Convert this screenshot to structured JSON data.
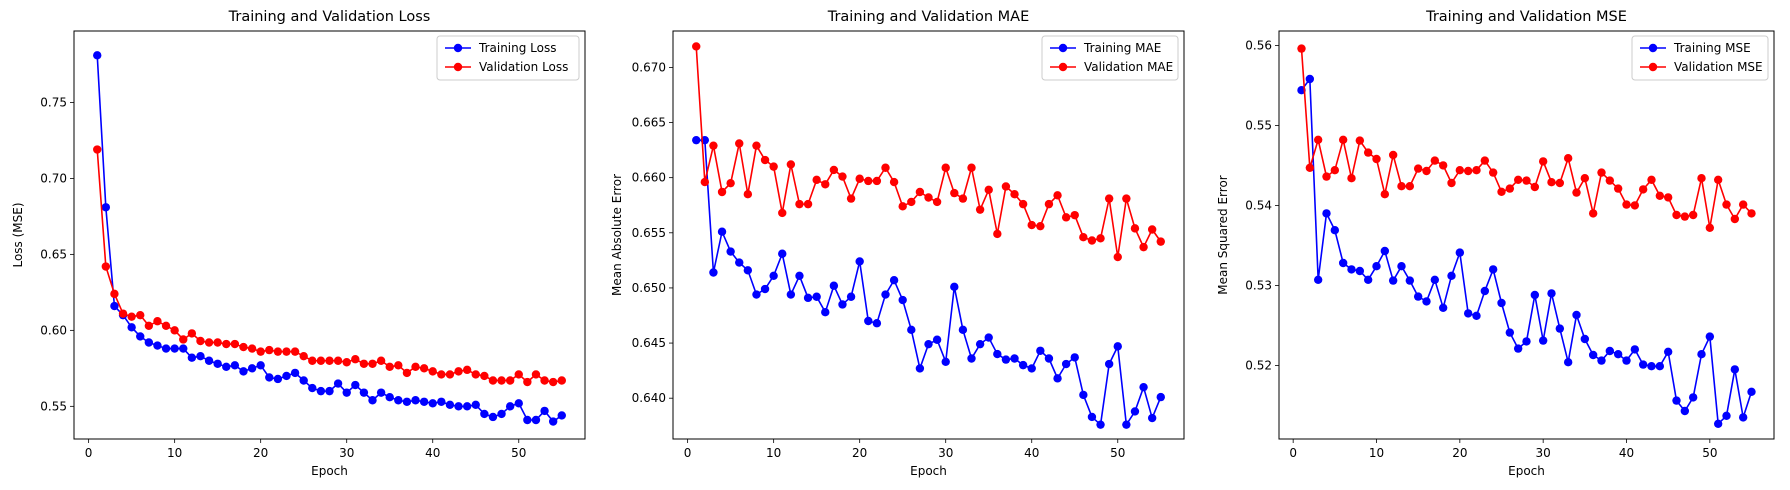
{
  "chart_data": [
    {
      "type": "line",
      "title": "Training and Validation Loss",
      "xlabel": "Epoch",
      "ylabel": "Loss (MSE)",
      "xlim": [
        -1.7,
        57.7
      ],
      "ylim": [
        0.5285,
        0.797
      ],
      "xticks": [
        0,
        10,
        20,
        30,
        40,
        50
      ],
      "yticks": [
        0.55,
        0.6,
        0.65,
        0.7,
        0.75
      ],
      "ytick_labels": [
        "0.55",
        "0.60",
        "0.65",
        "0.70",
        "0.75"
      ],
      "legend_position": "top-right",
      "series": [
        {
          "name": "Training Loss",
          "color": "#0000ff",
          "x": [
            1,
            2,
            3,
            4,
            5,
            6,
            7,
            8,
            9,
            10,
            11,
            12,
            13,
            14,
            15,
            16,
            17,
            18,
            19,
            20,
            21,
            22,
            23,
            24,
            25,
            26,
            27,
            28,
            29,
            30,
            31,
            32,
            33,
            34,
            35,
            36,
            37,
            38,
            39,
            40,
            41,
            42,
            43,
            44,
            45,
            46,
            47,
            48,
            49,
            50,
            51,
            52,
            53,
            54,
            55
          ],
          "values": [
            0.781,
            0.681,
            0.616,
            0.61,
            0.602,
            0.596,
            0.592,
            0.59,
            0.588,
            0.588,
            0.588,
            0.582,
            0.583,
            0.58,
            0.578,
            0.576,
            0.577,
            0.573,
            0.575,
            0.577,
            0.569,
            0.568,
            0.57,
            0.572,
            0.567,
            0.562,
            0.56,
            0.56,
            0.565,
            0.559,
            0.564,
            0.559,
            0.554,
            0.559,
            0.556,
            0.554,
            0.553,
            0.554,
            0.553,
            0.552,
            0.553,
            0.551,
            0.55,
            0.55,
            0.551,
            0.545,
            0.543,
            0.545,
            0.55,
            0.552,
            0.541,
            0.541,
            0.547,
            0.54,
            0.544
          ]
        },
        {
          "name": "Validation Loss",
          "color": "#ff0000",
          "x": [
            1,
            2,
            3,
            4,
            5,
            6,
            7,
            8,
            9,
            10,
            11,
            12,
            13,
            14,
            15,
            16,
            17,
            18,
            19,
            20,
            21,
            22,
            23,
            24,
            25,
            26,
            27,
            28,
            29,
            30,
            31,
            32,
            33,
            34,
            35,
            36,
            37,
            38,
            39,
            40,
            41,
            42,
            43,
            44,
            45,
            46,
            47,
            48,
            49,
            50,
            51,
            52,
            53,
            54,
            55
          ],
          "values": [
            0.719,
            0.642,
            0.624,
            0.611,
            0.609,
            0.61,
            0.603,
            0.606,
            0.603,
            0.6,
            0.594,
            0.598,
            0.593,
            0.592,
            0.592,
            0.591,
            0.591,
            0.589,
            0.588,
            0.586,
            0.587,
            0.586,
            0.586,
            0.586,
            0.583,
            0.58,
            0.58,
            0.58,
            0.58,
            0.579,
            0.581,
            0.578,
            0.578,
            0.58,
            0.576,
            0.577,
            0.572,
            0.576,
            0.575,
            0.573,
            0.571,
            0.571,
            0.573,
            0.574,
            0.571,
            0.57,
            0.567,
            0.567,
            0.567,
            0.571,
            0.566,
            0.571,
            0.567,
            0.566,
            0.567
          ]
        }
      ]
    },
    {
      "type": "line",
      "title": "Training and Validation MAE",
      "xlabel": "Epoch",
      "ylabel": "Mean Absolute Error",
      "xlim": [
        -1.7,
        57.7
      ],
      "ylim": [
        0.6363,
        0.6733
      ],
      "xticks": [
        0,
        10,
        20,
        30,
        40,
        50
      ],
      "yticks": [
        0.64,
        0.645,
        0.65,
        0.655,
        0.66,
        0.665,
        0.67
      ],
      "ytick_labels": [
        "0.640",
        "0.645",
        "0.650",
        "0.655",
        "0.660",
        "0.665",
        "0.670"
      ],
      "legend_position": "top-right",
      "series": [
        {
          "name": "Training MAE",
          "color": "#0000ff",
          "x": [
            1,
            2,
            3,
            4,
            5,
            6,
            7,
            8,
            9,
            10,
            11,
            12,
            13,
            14,
            15,
            16,
            17,
            18,
            19,
            20,
            21,
            22,
            23,
            24,
            25,
            26,
            27,
            28,
            29,
            30,
            31,
            32,
            33,
            34,
            35,
            36,
            37,
            38,
            39,
            40,
            41,
            42,
            43,
            44,
            45,
            46,
            47,
            48,
            49,
            50,
            51,
            52,
            53,
            54,
            55
          ],
          "values": [
            0.6634,
            0.6634,
            0.6514,
            0.6551,
            0.6533,
            0.6523,
            0.6516,
            0.6494,
            0.6499,
            0.6511,
            0.6531,
            0.6494,
            0.6511,
            0.6491,
            0.6492,
            0.6478,
            0.6502,
            0.6485,
            0.6492,
            0.6524,
            0.647,
            0.6468,
            0.6494,
            0.6507,
            0.6489,
            0.6462,
            0.6427,
            0.6449,
            0.6453,
            0.6433,
            0.6501,
            0.6462,
            0.6436,
            0.6449,
            0.6455,
            0.644,
            0.6435,
            0.6436,
            0.643,
            0.6427,
            0.6443,
            0.6436,
            0.6418,
            0.6431,
            0.6437,
            0.6403,
            0.6383,
            0.6376,
            0.6431,
            0.6447,
            0.6376,
            0.6388,
            0.641,
            0.6382,
            0.6401
          ]
        },
        {
          "name": "Validation MAE",
          "color": "#ff0000",
          "x": [
            1,
            2,
            3,
            4,
            5,
            6,
            7,
            8,
            9,
            10,
            11,
            12,
            13,
            14,
            15,
            16,
            17,
            18,
            19,
            20,
            21,
            22,
            23,
            24,
            25,
            26,
            27,
            28,
            29,
            30,
            31,
            32,
            33,
            34,
            35,
            36,
            37,
            38,
            39,
            40,
            41,
            42,
            43,
            44,
            45,
            46,
            47,
            48,
            49,
            50,
            51,
            52,
            53,
            54,
            55
          ],
          "values": [
            0.6719,
            0.6596,
            0.6629,
            0.6587,
            0.6595,
            0.6631,
            0.6585,
            0.6629,
            0.6616,
            0.661,
            0.6568,
            0.6612,
            0.6576,
            0.6576,
            0.6598,
            0.6594,
            0.6607,
            0.6601,
            0.6581,
            0.6599,
            0.6597,
            0.6597,
            0.6609,
            0.6596,
            0.6574,
            0.6578,
            0.6587,
            0.6582,
            0.6578,
            0.6609,
            0.6586,
            0.6581,
            0.6609,
            0.6571,
            0.6589,
            0.6549,
            0.6592,
            0.6585,
            0.6576,
            0.6557,
            0.6556,
            0.6576,
            0.6584,
            0.6564,
            0.6566,
            0.6546,
            0.6543,
            0.6545,
            0.6581,
            0.6528,
            0.6581,
            0.6554,
            0.6537,
            0.6553,
            0.6542
          ]
        }
      ]
    },
    {
      "type": "line",
      "title": "Training and Validation MSE",
      "xlabel": "Epoch",
      "ylabel": "Mean Squared Error",
      "xlim": [
        -1.7,
        57.7
      ],
      "ylim": [
        0.5108,
        0.5618
      ],
      "xticks": [
        0,
        10,
        20,
        30,
        40,
        50
      ],
      "yticks": [
        0.52,
        0.53,
        0.54,
        0.55,
        0.56
      ],
      "ytick_labels": [
        "0.52",
        "0.53",
        "0.54",
        "0.55",
        "0.56"
      ],
      "legend_position": "top-right",
      "series": [
        {
          "name": "Training MSE",
          "color": "#0000ff",
          "x": [
            1,
            2,
            3,
            4,
            5,
            6,
            7,
            8,
            9,
            10,
            11,
            12,
            13,
            14,
            15,
            16,
            17,
            18,
            19,
            20,
            21,
            22,
            23,
            24,
            25,
            26,
            27,
            28,
            29,
            30,
            31,
            32,
            33,
            34,
            35,
            36,
            37,
            38,
            39,
            40,
            41,
            42,
            43,
            44,
            45,
            46,
            47,
            48,
            49,
            50,
            51,
            52,
            53,
            54,
            55
          ],
          "values": [
            0.5544,
            0.5558,
            0.5307,
            0.539,
            0.5369,
            0.5328,
            0.532,
            0.5318,
            0.5307,
            0.5324,
            0.5343,
            0.5306,
            0.5324,
            0.5306,
            0.5286,
            0.528,
            0.5307,
            0.5272,
            0.5312,
            0.5341,
            0.5265,
            0.5262,
            0.5293,
            0.532,
            0.5278,
            0.5241,
            0.5221,
            0.523,
            0.5288,
            0.5231,
            0.529,
            0.5246,
            0.5204,
            0.5263,
            0.5233,
            0.5213,
            0.5206,
            0.5218,
            0.5214,
            0.5206,
            0.522,
            0.5201,
            0.5199,
            0.5199,
            0.5217,
            0.5156,
            0.5143,
            0.516,
            0.5214,
            0.5236,
            0.5127,
            0.5137,
            0.5195,
            0.5135,
            0.5167
          ]
        },
        {
          "name": "Validation MSE",
          "color": "#ff0000",
          "x": [
            1,
            2,
            3,
            4,
            5,
            6,
            7,
            8,
            9,
            10,
            11,
            12,
            13,
            14,
            15,
            16,
            17,
            18,
            19,
            20,
            21,
            22,
            23,
            24,
            25,
            26,
            27,
            28,
            29,
            30,
            31,
            32,
            33,
            34,
            35,
            36,
            37,
            38,
            39,
            40,
            41,
            42,
            43,
            44,
            45,
            46,
            47,
            48,
            49,
            50,
            51,
            52,
            53,
            54,
            55
          ],
          "values": [
            0.5596,
            0.5447,
            0.5482,
            0.5436,
            0.5444,
            0.5482,
            0.5434,
            0.5481,
            0.5466,
            0.5458,
            0.5414,
            0.5463,
            0.5424,
            0.5424,
            0.5446,
            0.5443,
            0.5456,
            0.545,
            0.5428,
            0.5444,
            0.5443,
            0.5444,
            0.5456,
            0.5441,
            0.5417,
            0.5421,
            0.5432,
            0.5431,
            0.5423,
            0.5455,
            0.5429,
            0.5428,
            0.5459,
            0.5416,
            0.5434,
            0.539,
            0.5441,
            0.5431,
            0.5421,
            0.5401,
            0.54,
            0.542,
            0.5432,
            0.5412,
            0.541,
            0.5388,
            0.5386,
            0.5388,
            0.5434,
            0.5372,
            0.5432,
            0.5401,
            0.5383,
            0.5401,
            0.539
          ]
        }
      ]
    }
  ]
}
